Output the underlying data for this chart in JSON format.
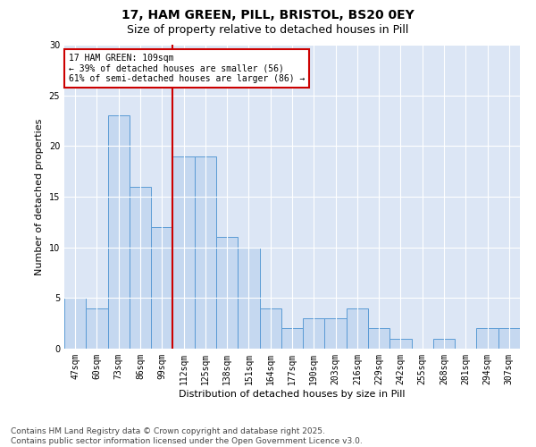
{
  "title1": "17, HAM GREEN, PILL, BRISTOL, BS20 0EY",
  "title2": "Size of property relative to detached houses in Pill",
  "xlabel": "Distribution of detached houses by size in Pill",
  "ylabel": "Number of detached properties",
  "categories": [
    "47sqm",
    "60sqm",
    "73sqm",
    "86sqm",
    "99sqm",
    "112sqm",
    "125sqm",
    "138sqm",
    "151sqm",
    "164sqm",
    "177sqm",
    "190sqm",
    "203sqm",
    "216sqm",
    "229sqm",
    "242sqm",
    "255sqm",
    "268sqm",
    "281sqm",
    "294sqm",
    "307sqm"
  ],
  "values": [
    5,
    4,
    23,
    16,
    12,
    19,
    19,
    11,
    10,
    4,
    2,
    3,
    3,
    4,
    2,
    1,
    0,
    1,
    0,
    2,
    2
  ],
  "bar_color": "#c5d8f0",
  "bar_edge_color": "#5b9bd5",
  "vline_color": "#cc0000",
  "annotation_text": "17 HAM GREEN: 109sqm\n← 39% of detached houses are smaller (56)\n61% of semi-detached houses are larger (86) →",
  "annotation_box_color": "#ffffff",
  "annotation_box_edge_color": "#cc0000",
  "ylim": [
    0,
    30
  ],
  "yticks": [
    0,
    5,
    10,
    15,
    20,
    25,
    30
  ],
  "plot_bg_color": "#dce6f5",
  "fig_bg_color": "#ffffff",
  "footer_text": "Contains HM Land Registry data © Crown copyright and database right 2025.\nContains public sector information licensed under the Open Government Licence v3.0.",
  "title_fontsize": 10,
  "subtitle_fontsize": 9,
  "axis_label_fontsize": 8,
  "tick_fontsize": 7,
  "annotation_fontsize": 7,
  "footer_fontsize": 6.5
}
